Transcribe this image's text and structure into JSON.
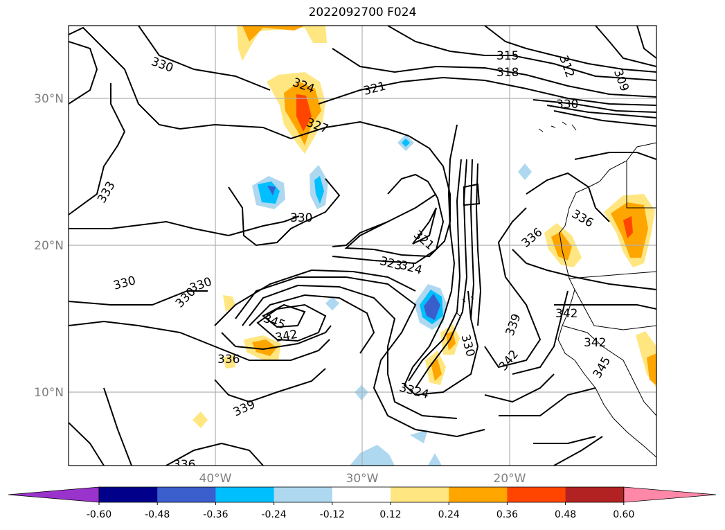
{
  "title": "2022092700 F024",
  "map": {
    "lat_range": [
      5,
      35
    ],
    "lon_range": [
      -50,
      -10
    ],
    "lat_ticks": [
      {
        "value": 30,
        "label": "30°N"
      },
      {
        "value": 20,
        "label": "20°N"
      },
      {
        "value": 10,
        "label": "10°N"
      }
    ],
    "lon_ticks": [
      {
        "value": -40,
        "label": "40°W"
      },
      {
        "value": -30,
        "label": "30°W"
      },
      {
        "value": -20,
        "label": "20°W"
      }
    ],
    "gridlines": true,
    "contour_field": "theta-e style isolines (black)",
    "contour_labels": [
      "315",
      "318",
      "312",
      "309",
      "321",
      "330",
      "324",
      "327",
      "333",
      "330",
      "330",
      "336",
      "336",
      "321",
      "323",
      "324",
      "330",
      "330",
      "345",
      "342",
      "339",
      "342",
      "342",
      "342",
      "345",
      "336",
      "339",
      "330",
      "3324",
      "336",
      "330"
    ]
  },
  "colorbar": {
    "levels": [
      "-0.60",
      "-0.48",
      "-0.36",
      "-0.24",
      "-0.12",
      "0.12",
      "0.24",
      "0.36",
      "0.48",
      "0.60"
    ],
    "colors": [
      "#9933cc",
      "#00008b",
      "#3a5fcd",
      "#00bfff",
      "#add8f0",
      "#ffffff",
      "#ffe680",
      "#ffa500",
      "#ff4500",
      "#b22222",
      "#ff88a8"
    ],
    "extend": "both"
  },
  "colors": {
    "contour": "#000000",
    "grid": "#b0b0b0",
    "coast": "#000000"
  }
}
